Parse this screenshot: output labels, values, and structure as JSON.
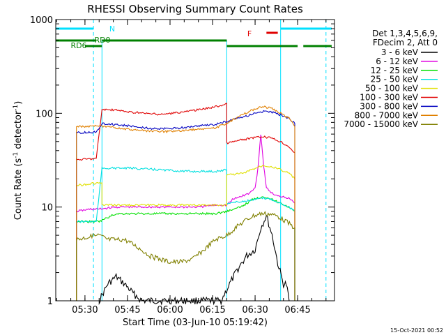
{
  "chart_data": {
    "type": "line",
    "title": "RHESSI Observing Summary Count Rates",
    "xlabel": "Start Time (03-Jun-10 05:19:42)",
    "ylabel": "Count Rate (s⁻¹ detector⁻¹)",
    "ylabel_parts": [
      "Count Rate (s",
      "-1",
      " detector",
      "-1",
      ")"
    ],
    "y_scale": "log",
    "xlim": [
      "05:19:42",
      "06:58:00"
    ],
    "ylim": [
      1,
      1000
    ],
    "x_ticks": [
      "05:30",
      "05:45",
      "06:00",
      "06:15",
      "06:30",
      "06:45"
    ],
    "y_ticks": [
      "1",
      "10",
      "100",
      "1000"
    ],
    "legend_title": [
      "Det 1,3,4,5,6,9,",
      "FDecim 2, Att 0"
    ],
    "legend_position": "right",
    "timestamp": "15-Oct-2021 00:52",
    "series": [
      {
        "name": "3 - 6 keV",
        "color": "#000000",
        "x": [
          "05:35",
          "05:38",
          "05:41",
          "05:44",
          "05:47",
          "05:50",
          "06:18",
          "06:21",
          "06:24",
          "06:27",
          "06:30",
          "06:32",
          "06:34",
          "06:36",
          "06:38",
          "06:40",
          "06:41",
          "06:42"
        ],
        "y": [
          1,
          1.5,
          1.8,
          1.5,
          1.2,
          1,
          1,
          1.5,
          2.2,
          3,
          3.5,
          6,
          8,
          5,
          2.5,
          1.5,
          1.5,
          1
        ]
      },
      {
        "name": "6 - 12 keV",
        "color": "#e000e0",
        "x": [
          "05:27",
          "05:32",
          "05:35",
          "05:41",
          "05:46",
          "05:50",
          "05:56",
          "06:00",
          "06:06",
          "06:10",
          "06:16",
          "06:20",
          "06:22",
          "06:25",
          "06:28",
          "06:30",
          "06:31",
          "06:32",
          "06:33",
          "06:34",
          "06:36",
          "06:38",
          "06:40",
          "06:43",
          "06:44"
        ],
        "y": [
          9,
          9.5,
          9.5,
          10,
          10,
          10,
          10,
          10,
          10,
          10,
          10.5,
          10.5,
          12,
          13,
          14,
          16,
          26,
          60,
          28,
          16,
          14,
          13,
          13,
          12,
          11
        ]
      },
      {
        "name": "12 - 25 keV",
        "color": "#00e000",
        "x": [
          "05:27",
          "05:35",
          "05:41",
          "05:46",
          "05:50",
          "05:56",
          "06:00",
          "06:06",
          "06:10",
          "06:16",
          "06:20",
          "06:25",
          "06:29",
          "06:33",
          "06:36",
          "06:39",
          "06:42",
          "06:44"
        ],
        "y": [
          7,
          7,
          8.5,
          8.5,
          8.5,
          8.5,
          8.5,
          8.5,
          8.5,
          8.5,
          9,
          10,
          12,
          13,
          12,
          11,
          10,
          9
        ]
      },
      {
        "name": "25 - 50 keV",
        "color": "#00e0e0",
        "x": [
          "05:27",
          "05:34",
          "05:36",
          "05:46",
          "05:56",
          "06:06",
          "06:16",
          "06:20",
          "06:20",
          "06:26",
          "06:30",
          "06:33",
          "06:36",
          "06:39",
          "06:42",
          "06:44"
        ],
        "y": [
          7,
          7,
          26,
          26,
          25,
          24,
          24,
          25,
          11,
          11.5,
          12,
          12.5,
          12,
          11,
          10,
          9
        ]
      },
      {
        "name": "50 - 100 keV",
        "color": "#e0e000",
        "x": [
          "05:27",
          "05:34",
          "05:36",
          "05:36",
          "05:46",
          "05:56",
          "06:06",
          "06:16",
          "06:20",
          "06:20",
          "06:26",
          "06:30",
          "06:33",
          "06:36",
          "06:39",
          "06:42",
          "06:44"
        ],
        "y": [
          17,
          18,
          18,
          10.5,
          10.5,
          10.5,
          10.5,
          10.5,
          10.5,
          22,
          23,
          26,
          28,
          27,
          25,
          23,
          20
        ]
      },
      {
        "name": "100 - 300 keV",
        "color": "#e00000",
        "x": [
          "05:27",
          "05:34",
          "05:36",
          "05:41",
          "05:46",
          "05:51",
          "05:56",
          "06:01",
          "06:06",
          "06:11",
          "06:16",
          "06:20",
          "06:20",
          "06:25",
          "06:30",
          "06:33",
          "06:36",
          "06:39",
          "06:42",
          "06:44"
        ],
        "y": [
          32,
          33,
          110,
          108,
          103,
          100,
          97,
          100,
          105,
          110,
          118,
          125,
          48,
          52,
          55,
          56,
          54,
          50,
          44,
          38
        ]
      },
      {
        "name": "300 - 800 keV",
        "color": "#0000c0",
        "x": [
          "05:27",
          "05:34",
          "05:36",
          "05:41",
          "05:46",
          "05:51",
          "05:56",
          "06:01",
          "06:06",
          "06:11",
          "06:16",
          "06:20",
          "06:25",
          "06:30",
          "06:33",
          "06:36",
          "06:39",
          "06:42",
          "06:44"
        ],
        "y": [
          62,
          63,
          78,
          76,
          73,
          70,
          68,
          69,
          71,
          74,
          76,
          82,
          90,
          100,
          105,
          102,
          96,
          88,
          78
        ]
      },
      {
        "name": "800 - 7000 keV",
        "color": "#e08000",
        "x": [
          "05:27",
          "05:34",
          "05:36",
          "05:41",
          "05:46",
          "05:51",
          "05:56",
          "06:01",
          "06:06",
          "06:11",
          "06:16",
          "06:20",
          "06:25",
          "06:30",
          "06:33",
          "06:36",
          "06:39",
          "06:42",
          "06:44"
        ],
        "y": [
          72,
          73,
          72,
          70,
          67,
          65,
          64,
          64,
          66,
          68,
          70,
          78,
          95,
          112,
          118,
          112,
          100,
          88,
          72
        ]
      },
      {
        "name": "7000 - 15000 keV",
        "color": "#808000",
        "x": [
          "05:27",
          "05:31",
          "05:35",
          "05:38",
          "05:41",
          "05:44",
          "05:47",
          "05:50",
          "05:53",
          "05:56",
          "06:00",
          "06:04",
          "06:08",
          "06:12",
          "06:16",
          "06:20",
          "06:23",
          "06:26",
          "06:29",
          "06:32",
          "06:35",
          "06:38",
          "06:41",
          "06:44"
        ],
        "y": [
          4.5,
          4.8,
          5,
          4.5,
          4.5,
          4.5,
          4,
          3.5,
          3,
          2.8,
          2.6,
          2.6,
          2.8,
          3.5,
          4.5,
          5,
          6,
          7,
          8,
          8.5,
          8.5,
          8,
          7,
          6
        ]
      }
    ],
    "state_bars": {
      "saa_label": "N",
      "saa_color": "#00e0ff",
      "night_label": "RD0",
      "day_label": "RD6",
      "flare_label": "F",
      "state_color": "#008000",
      "flare_color": "#e00000",
      "saa_segments": [
        [
          "05:19:42",
          "05:33:00"
        ],
        [
          "06:39:00",
          "06:57:00"
        ]
      ],
      "rd0_segments": [
        [
          "05:19:42",
          "05:34:00"
        ],
        [
          "05:36:00",
          "06:20:00"
        ]
      ],
      "rd6_segments": [
        [
          "05:30:00",
          "05:36:00"
        ],
        [
          "06:20:00",
          "06:45:00"
        ],
        [
          "06:47:00",
          "06:57:00"
        ]
      ],
      "flare_segments": [
        [
          "06:34:00",
          "06:38:00"
        ]
      ],
      "saa_boundaries": [
        "05:19:42",
        "05:33:00",
        "06:39:00",
        "06:55:00"
      ],
      "night_boundaries": [
        "05:36:00",
        "06:20:00"
      ]
    }
  }
}
